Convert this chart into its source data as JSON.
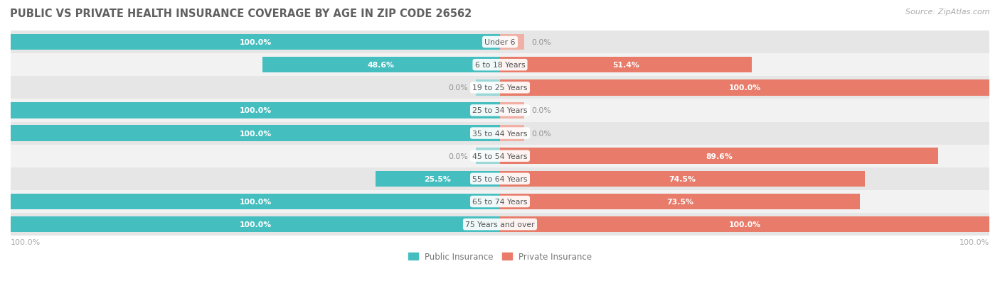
{
  "title": "PUBLIC VS PRIVATE HEALTH INSURANCE COVERAGE BY AGE IN ZIP CODE 26562",
  "source": "Source: ZipAtlas.com",
  "categories": [
    "Under 6",
    "6 to 18 Years",
    "19 to 25 Years",
    "25 to 34 Years",
    "35 to 44 Years",
    "45 to 54 Years",
    "55 to 64 Years",
    "65 to 74 Years",
    "75 Years and over"
  ],
  "public_values": [
    100.0,
    48.6,
    0.0,
    100.0,
    100.0,
    0.0,
    25.5,
    100.0,
    100.0
  ],
  "private_values": [
    0.0,
    51.4,
    100.0,
    0.0,
    0.0,
    89.6,
    74.5,
    73.5,
    100.0
  ],
  "public_color": "#45bec0",
  "private_color": "#e87b6a",
  "public_color_light": "#9dd8d8",
  "private_color_light": "#f0b0a5",
  "public_label": "Public Insurance",
  "private_label": "Private Insurance",
  "row_bg_colors": [
    "#e6e6e6",
    "#f2f2f2"
  ],
  "title_color": "#606060",
  "value_color_inside_white": "#ffffff",
  "value_color_outside": "#909090",
  "axis_label_left": "100.0%",
  "axis_label_right": "100.0%",
  "stub_size": 5.0
}
